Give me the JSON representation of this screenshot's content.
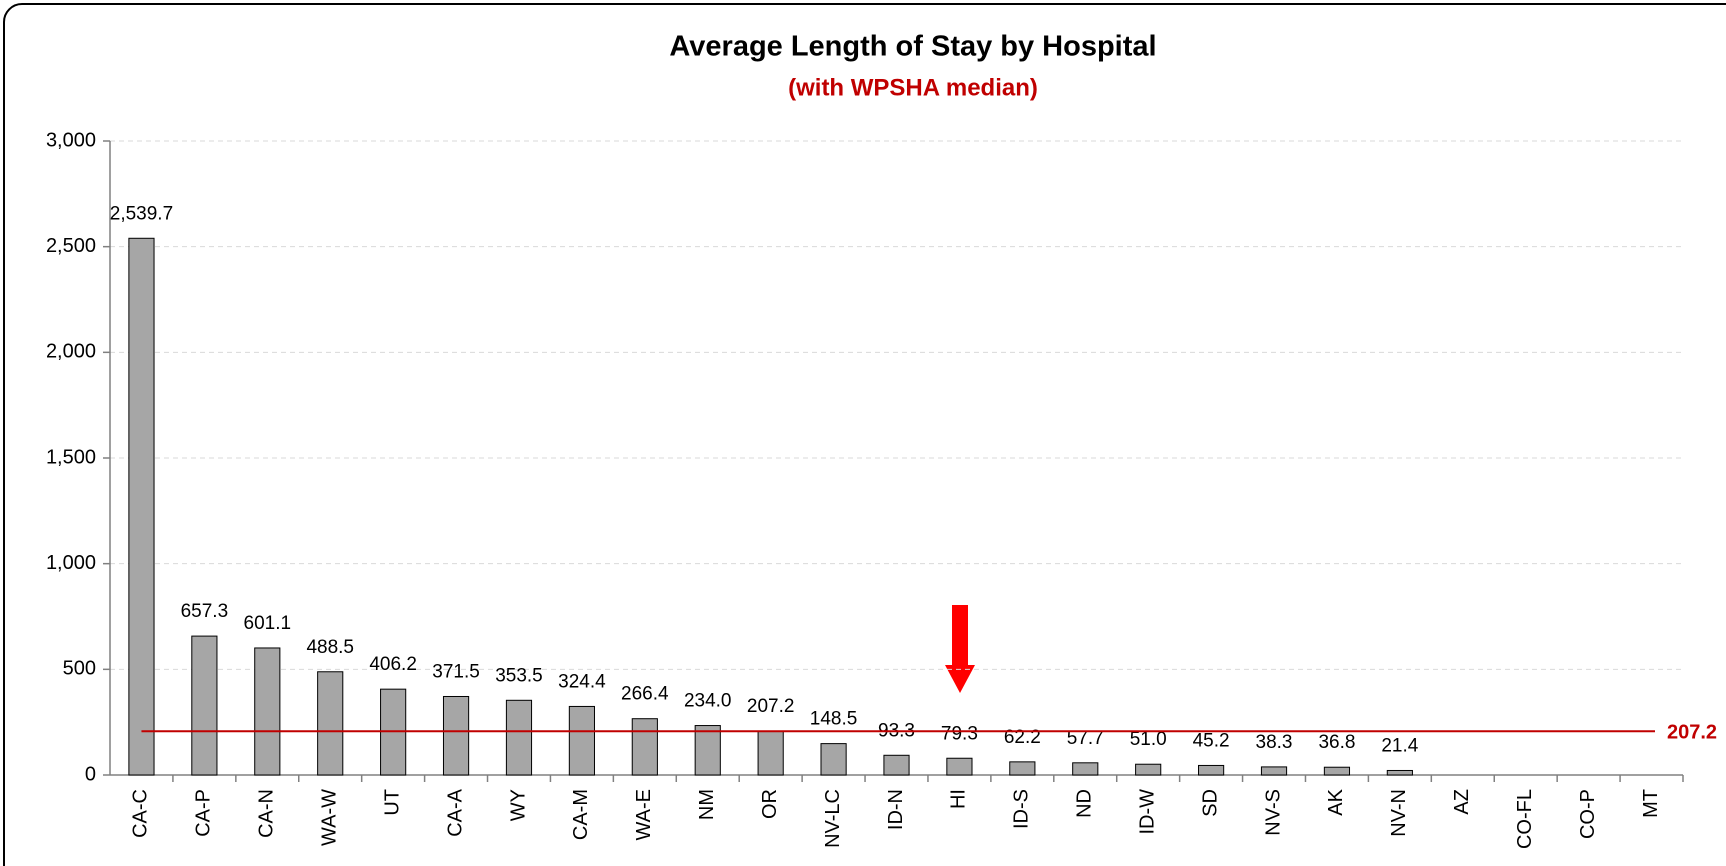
{
  "chart_data": {
    "type": "bar",
    "title": "Average Length of Stay by Hospital",
    "subtitle": "(with WPSHA median)",
    "categories": [
      "CA-C",
      "CA-P",
      "CA-N",
      "WA-W",
      "UT",
      "CA-A",
      "WY",
      "CA-M",
      "WA-E",
      "NM",
      "OR",
      "NV-LC",
      "ID-N",
      "HI",
      "ID-S",
      "ND",
      "ID-W",
      "SD",
      "NV-S",
      "AK",
      "NV-N",
      "AZ",
      "CO-FL",
      "CO-P",
      "MT"
    ],
    "values": [
      2539.7,
      657.3,
      601.1,
      488.5,
      406.2,
      371.5,
      353.5,
      324.4,
      266.4,
      234.0,
      207.2,
      148.5,
      93.3,
      79.3,
      62.2,
      57.7,
      51.0,
      45.2,
      38.3,
      36.8,
      21.4,
      null,
      null,
      null,
      null
    ],
    "value_labels": [
      "2,539.7",
      "657.3",
      "601.1",
      "488.5",
      "406.2",
      "371.5",
      "353.5",
      "324.4",
      "266.4",
      "234.0",
      "207.2",
      "148.5",
      "93.3",
      "79.3",
      "62.2",
      "57.7",
      "51.0",
      "45.2",
      "38.3",
      "36.8",
      "21.4",
      null,
      null,
      null,
      null
    ],
    "color": "#a6a6a6",
    "ylim": [
      0,
      3000
    ],
    "yticks": [
      0,
      500,
      {
        "value": 1000,
        "label": "1,000"
      },
      {
        "value": 1500,
        "label": "1,500"
      },
      {
        "value": 2000,
        "label": "2,000"
      },
      {
        "value": 2500,
        "label": "2,500"
      },
      {
        "value": 3000,
        "label": "3,000"
      }
    ],
    "grid": true,
    "reference_line": {
      "value": 207.2,
      "label": "207.2",
      "color": "#c00000"
    }
  }
}
